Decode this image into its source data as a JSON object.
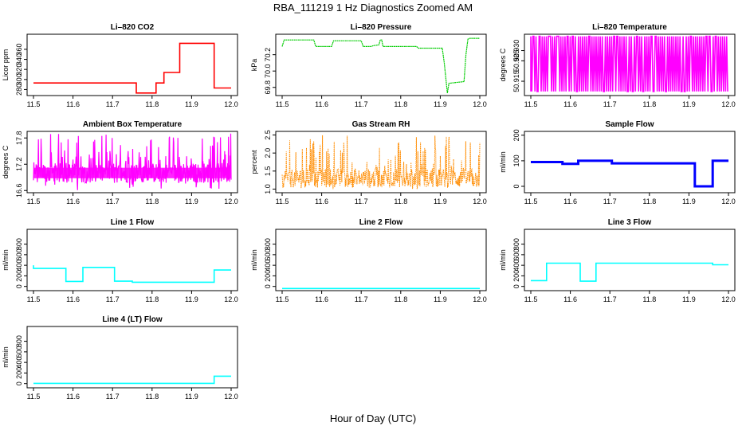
{
  "page": {
    "title": "RBA_111219  1 Hz Diagnostics Zoomed AM",
    "xlabel": "Hour of Day (UTC)"
  },
  "chart_data": [
    {
      "type": "line",
      "title": "Li–820 CO2",
      "ylabel": "Licor ppm",
      "color": "#ff0000",
      "xlim": [
        11.5,
        12.0
      ],
      "ylim": [
        268,
        390
      ],
      "yticks": [
        "280",
        "300",
        "320",
        "340",
        "360"
      ],
      "xticks": [
        "11.5",
        "11.6",
        "11.7",
        "11.8",
        "11.9",
        "12.0"
      ],
      "series": [
        {
          "x": [
            11.5,
            11.76,
            11.76,
            11.81,
            11.81,
            11.83,
            11.83,
            11.87,
            11.87,
            11.957,
            11.957,
            12.0
          ],
          "y": [
            293,
            293,
            273,
            273,
            293,
            293,
            314,
            314,
            372,
            372,
            283,
            283
          ]
        }
      ]
    },
    {
      "type": "line",
      "title": "Li–820 Pressure",
      "ylabel": "kPa",
      "color": "#00cc00",
      "xlim": [
        11.5,
        12.0
      ],
      "ylim": [
        69.7,
        70.45
      ],
      "yticks": [
        "69.8",
        "70.0",
        "70.2"
      ],
      "xticks": [
        "11.5",
        "11.6",
        "11.7",
        "11.8",
        "11.9",
        "12.0"
      ],
      "series": [
        {
          "x": [
            11.5,
            11.505,
            11.58,
            11.585,
            11.625,
            11.63,
            11.7,
            11.705,
            11.725,
            11.73,
            11.745,
            11.748,
            11.752,
            11.755,
            11.84,
            11.845,
            11.905,
            11.91,
            11.918,
            11.922,
            11.96,
            11.965,
            11.97,
            11.975,
            12.0
          ],
          "y": [
            70.3,
            70.38,
            70.38,
            70.3,
            70.3,
            70.37,
            70.37,
            70.3,
            70.3,
            70.31,
            70.32,
            70.38,
            70.38,
            70.3,
            70.3,
            70.28,
            70.28,
            70.1,
            69.73,
            69.85,
            69.87,
            70.2,
            70.39,
            70.4,
            70.4
          ]
        }
      ]
    },
    {
      "type": "line",
      "title": "Li–820 Temperature",
      "ylabel": "degrees C",
      "color": "#ff00ff",
      "xlim": [
        11.5,
        12.0
      ],
      "ylim": [
        50.908,
        50.938
      ],
      "yticks": [
        "50.915",
        "50.925",
        "50.930"
      ],
      "xticks": [
        "11.5",
        "11.6",
        "11.7",
        "11.8",
        "11.9",
        "12.0"
      ],
      "series": [
        {
          "x": [
            11.5,
            12.0
          ],
          "y": [
            50.91,
            50.937
          ],
          "note_style": "rapid-toggle"
        }
      ]
    },
    {
      "type": "line",
      "title": "Ambient Box Temperature",
      "ylabel": "degrees C",
      "color": "#ff00ff",
      "xlim": [
        11.5,
        12.0
      ],
      "ylim": [
        16.55,
        17.95
      ],
      "yticks": [
        "16.6",
        "17.2",
        "17.8"
      ],
      "xticks": [
        "11.5",
        "11.6",
        "11.7",
        "11.8",
        "11.9",
        "12.0"
      ],
      "series": [
        {
          "x": [
            11.5,
            12.0
          ],
          "y": [
            16.6,
            17.9
          ],
          "mean": 17.0
        }
      ]
    },
    {
      "type": "line",
      "title": "Gas Stream RH",
      "ylabel": "percent",
      "color": "#ff8c00",
      "xlim": [
        11.5,
        12.0
      ],
      "ylim": [
        0.9,
        2.6
      ],
      "yticks": [
        "1.0",
        "1.5",
        "2.0",
        "2.5"
      ],
      "xticks": [
        "11.5",
        "11.6",
        "11.7",
        "11.8",
        "11.9",
        "12.0"
      ],
      "series": [
        {
          "x": [
            11.5,
            12.0
          ],
          "y": [
            1.0,
            2.5
          ],
          "mean": 1.3
        }
      ]
    },
    {
      "type": "line",
      "title": "Sample Flow",
      "ylabel": "ml/min",
      "color": "#0000ff",
      "xlim": [
        11.5,
        12.0
      ],
      "ylim": [
        -25,
        215
      ],
      "yticks": [
        "0",
        "100",
        "200"
      ],
      "xticks": [
        "11.5",
        "11.6",
        "11.7",
        "11.8",
        "11.9",
        "12.0"
      ],
      "series": [
        {
          "x": [
            11.5,
            11.58,
            11.58,
            11.62,
            11.62,
            11.705,
            11.705,
            11.915,
            11.915,
            11.96,
            11.96,
            12.0
          ],
          "y": [
            95,
            95,
            88,
            88,
            100,
            100,
            90,
            90,
            0,
            0,
            100,
            100
          ]
        }
      ]
    },
    {
      "type": "line",
      "title": "Line 1 Flow",
      "ylabel": "ml/min",
      "color": "#00ffff",
      "xlim": [
        11.5,
        12.0
      ],
      "ylim": [
        -80,
        1080
      ],
      "yticks": [
        "0",
        "200",
        "400",
        "600",
        "800"
      ],
      "xticks": [
        "11.5",
        "11.6",
        "11.7",
        "11.8",
        "11.9",
        "12.0"
      ],
      "series": [
        {
          "x": [
            11.5,
            11.5,
            11.582,
            11.582,
            11.625,
            11.625,
            11.705,
            11.705,
            11.75,
            11.75,
            11.957,
            11.957,
            12.0
          ],
          "y": [
            400,
            340,
            340,
            95,
            95,
            360,
            360,
            100,
            100,
            80,
            80,
            310,
            310
          ]
        }
      ]
    },
    {
      "type": "line",
      "title": "Line 2 Flow",
      "ylabel": "ml/min",
      "color": "#00ffff",
      "xlim": [
        11.5,
        12.0
      ],
      "ylim": [
        -80,
        1080
      ],
      "yticks": [
        "0",
        "200",
        "400",
        "600",
        "800"
      ],
      "xticks": [
        "11.5",
        "11.6",
        "11.7",
        "11.8",
        "11.9",
        "12.0"
      ],
      "series": [
        {
          "x": [
            11.5,
            12.0
          ],
          "y": [
            -40,
            -40
          ]
        }
      ]
    },
    {
      "type": "line",
      "title": "Line 3 Flow",
      "ylabel": "ml/min",
      "color": "#00ffff",
      "xlim": [
        11.5,
        12.0
      ],
      "ylim": [
        -80,
        1080
      ],
      "yticks": [
        "0",
        "200",
        "400",
        "600",
        "800"
      ],
      "xticks": [
        "11.5",
        "11.6",
        "11.7",
        "11.8",
        "11.9",
        "12.0"
      ],
      "series": [
        {
          "x": [
            11.5,
            11.54,
            11.54,
            11.625,
            11.625,
            11.665,
            11.665,
            11.96,
            11.96,
            12.0
          ],
          "y": [
            110,
            110,
            440,
            440,
            100,
            100,
            440,
            440,
            410,
            410
          ]
        }
      ]
    },
    {
      "type": "line",
      "title": "Line 4 (LT) Flow",
      "ylabel": "ml/min",
      "color": "#00ffff",
      "xlim": [
        11.5,
        12.0
      ],
      "ylim": [
        -80,
        1080
      ],
      "yticks": [
        "0",
        "200",
        "400",
        "600",
        "800"
      ],
      "xticks": [
        "11.5",
        "11.6",
        "11.7",
        "11.8",
        "11.9",
        "12.0"
      ],
      "series": [
        {
          "x": [
            11.5,
            11.957,
            11.957,
            12.0
          ],
          "y": [
            5,
            5,
            140,
            140
          ]
        }
      ]
    }
  ]
}
